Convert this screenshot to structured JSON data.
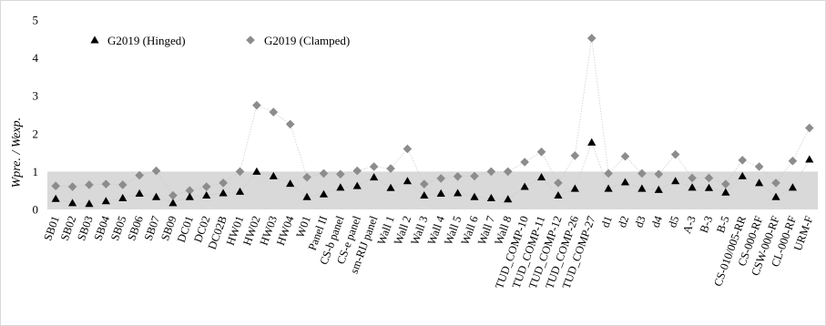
{
  "chart_data": {
    "type": "line",
    "ylabel": "Wpre. / Wexp.",
    "ylim": [
      0,
      5
    ],
    "yticks": [
      0,
      1,
      2,
      3,
      4,
      5
    ],
    "grid": false,
    "shaded_band": [
      0,
      1
    ],
    "legend_position": "top-left",
    "categories": [
      "SB01",
      "SB02",
      "SB03",
      "SB04",
      "SB05",
      "SB06",
      "SB07",
      "SB09",
      "DC01",
      "DC02",
      "DC02B",
      "HW01",
      "HW02",
      "HW03",
      "HW04",
      "W01",
      "Panel II",
      "CS-b panel",
      "CS-e panel",
      "sm-RIJ panel",
      "Wall 1",
      "Wall 2",
      "Wall 3",
      "Wall 4",
      "Wall 5",
      "Wall 6",
      "Wall 7",
      "Wall 8",
      "TUD_COMP-10",
      "TUD_COMP-11",
      "TUD_COMP-12",
      "TUD_COMP-26",
      "TUD_COMP-27",
      "d1",
      "d2",
      "d3",
      "d4",
      "d5",
      "A-3",
      "B-3",
      "B-5",
      "CS-010/005-RR",
      "CS-000-RF",
      "CSW-000-RF",
      "CL-000-RF",
      "URM-F"
    ],
    "series": [
      {
        "name": "G2019 (Hinged)",
        "marker": "triangle",
        "color": "#000000",
        "values": [
          0.28,
          0.17,
          0.15,
          0.22,
          0.3,
          0.42,
          0.33,
          0.17,
          0.33,
          0.37,
          0.43,
          0.47,
          1.0,
          0.88,
          0.68,
          0.33,
          0.4,
          0.58,
          0.62,
          0.85,
          0.57,
          0.75,
          0.37,
          0.42,
          0.43,
          0.33,
          0.3,
          0.27,
          0.6,
          0.85,
          0.37,
          0.55,
          1.77,
          0.55,
          0.72,
          0.55,
          0.52,
          0.75,
          0.58,
          0.57,
          0.45,
          0.88,
          0.7,
          0.33,
          0.58,
          1.32
        ]
      },
      {
        "name": "G2019 (Clamped)",
        "marker": "diamond",
        "color": "#8c8c8c",
        "values": [
          0.62,
          0.6,
          0.65,
          0.67,
          0.65,
          0.9,
          1.02,
          0.37,
          0.5,
          0.6,
          0.7,
          1.0,
          2.75,
          2.57,
          2.25,
          0.85,
          0.95,
          0.93,
          1.02,
          1.13,
          1.08,
          1.6,
          0.67,
          0.82,
          0.87,
          0.88,
          1.0,
          1.0,
          1.25,
          1.52,
          0.7,
          1.42,
          4.52,
          0.95,
          1.4,
          0.95,
          0.93,
          1.45,
          0.83,
          0.83,
          0.67,
          1.3,
          1.13,
          0.7,
          1.28,
          2.15
        ]
      }
    ]
  }
}
